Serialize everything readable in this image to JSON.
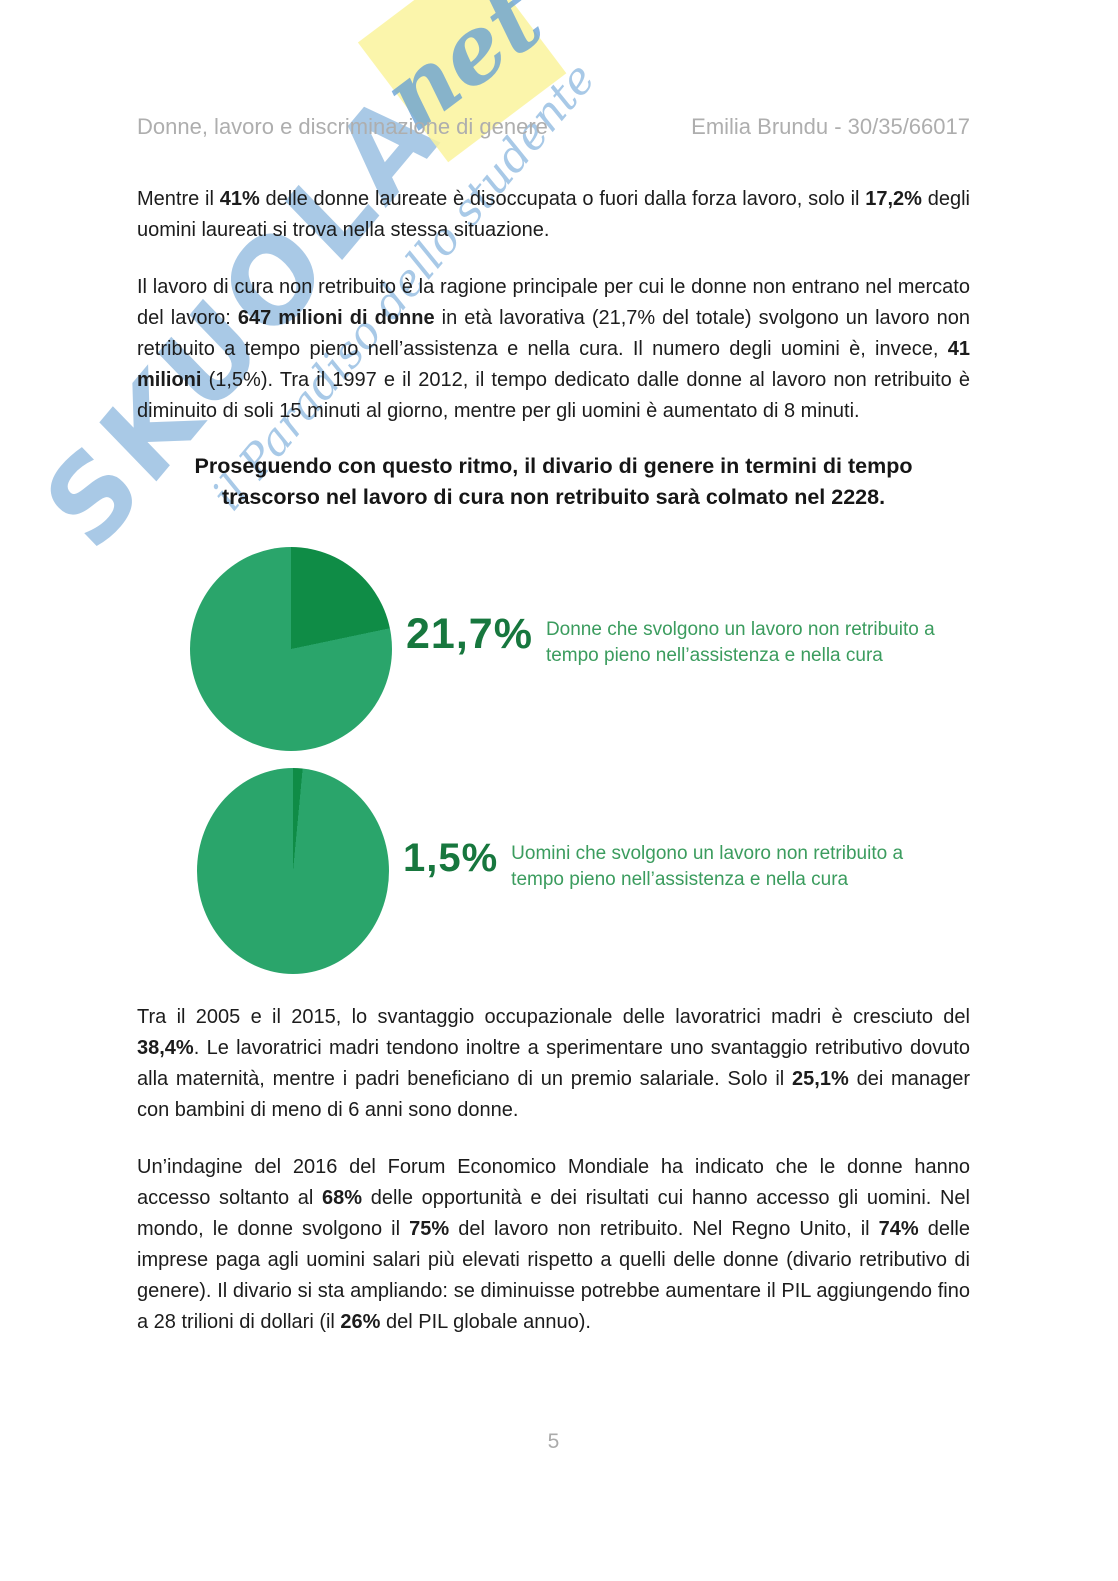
{
  "page": {
    "background": "#ffffff",
    "number": "5"
  },
  "header": {
    "title": "Donne, lavoro e discriminazione di genere",
    "author": "Emilia Brundu - 30/35/66017"
  },
  "watermark": {
    "brand": "SKUOLA",
    "brand_suffix": "net",
    "tagline": "il Paradiso dello studente",
    "blue": "#5494ce",
    "yellow": "#faf39c"
  },
  "paragraphs": {
    "p1": [
      {
        "t": "Mentre il "
      },
      {
        "t": "41%",
        "b": true
      },
      {
        "t": " delle donne laureate è disoccupata o fuori dalla forza lavoro, solo il "
      },
      {
        "t": "17,2%",
        "b": true
      },
      {
        "t": " degli uomini laureati si trova nella stessa situazione."
      }
    ],
    "p2": [
      {
        "t": "Il lavoro di cura non retribuito è la ragione principale per cui le donne non entrano nel mercato del lavoro: "
      },
      {
        "t": "647 milioni di donne",
        "b": true
      },
      {
        "t": " in età lavorativa (21,7% del totale) svolgono un lavoro non retribuito a tempo pieno nell’assistenza e nella cura. Il numero degli uomini è, invece, "
      },
      {
        "t": "41 milioni",
        "b": true
      },
      {
        "t": " (1,5%). Tra il 1997 e il 2012, il tempo dedicato dalle donne al lavoro non retribuito è diminuito di soli 15 minuti al giorno, mentre per gli uomini è aumentato di 8 minuti."
      }
    ],
    "p3": [
      {
        "t": "Tra il 2005 e il 2015, lo svantaggio occupazionale delle lavoratrici madri è cresciuto del "
      },
      {
        "t": "38,4%",
        "b": true
      },
      {
        "t": ". Le lavoratrici madri tendono inoltre a sperimentare uno svantaggio retributivo dovuto alla maternità, mentre i padri beneficiano di un premio salariale. Solo il "
      },
      {
        "t": "25,1%",
        "b": true
      },
      {
        "t": " dei manager con bambini di meno di 6 anni sono donne."
      }
    ],
    "p4": [
      {
        "t": "Un’indagine del 2016 del Forum Economico Mondiale ha indicato che le donne hanno accesso soltanto al "
      },
      {
        "t": "68%",
        "b": true
      },
      {
        "t": " delle opportunità e dei risultati cui hanno accesso gli uomini. Nel mondo, le donne svolgono il "
      },
      {
        "t": "75%",
        "b": true
      },
      {
        "t": " del lavoro non retribuito. Nel Regno Unito, il "
      },
      {
        "t": "74%",
        "b": true
      },
      {
        "t": " delle imprese paga agli uomini salari più elevati rispetto a quelli delle donne (divario retributivo di genere). Il divario si sta ampliando: se diminuisse potrebbe aumentare il PIL aggiungendo fino a 28 trilioni di dollari (il "
      },
      {
        "t": "26%",
        "b": true
      },
      {
        "t": " del PIL globale annuo)."
      }
    ]
  },
  "heading": {
    "text": "Proseguendo con questo ritmo, il divario di genere in termini di tempo trascorso nel lavoro di cura non retribuito sarà colmato nel 2228."
  },
  "figures": [
    {
      "pct": "21,7%",
      "caption": "Donne che svolgono un lavoro non retribuito a tempo pieno nell’assistenza e nella cura"
    },
    {
      "pct": "1,5%",
      "caption": "Uomini che svolgono un lavoro non retribuito a tempo pieno nell’assistenza e nella cura"
    }
  ],
  "chart_data": [
    {
      "type": "pie",
      "labels": [
        "Donne che svolgono un lavoro non retribuito a tempo pieno nell’assistenza e nella cura",
        ""
      ],
      "values": [
        21.7,
        78.3
      ],
      "colors": [
        "#0f8c46",
        "#2aa56b"
      ],
      "value_label": "21,7%",
      "legend_position": "right"
    },
    {
      "type": "pie",
      "labels": [
        "Uomini che svolgono un lavoro non retribuito a tempo pieno nell’assistenza e nella cura",
        ""
      ],
      "values": [
        1.5,
        98.5
      ],
      "colors": [
        "#0f8c46",
        "#2aa56b"
      ],
      "value_label": "1,5%",
      "legend_position": "right"
    }
  ]
}
